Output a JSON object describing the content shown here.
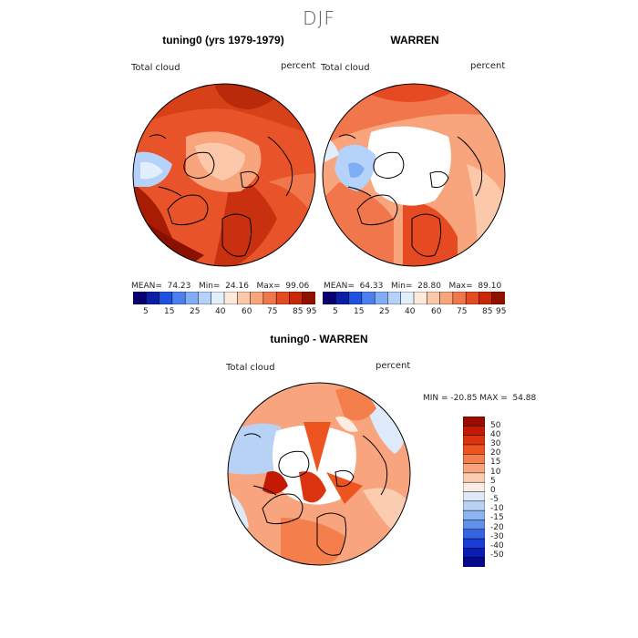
{
  "season": "DJF",
  "panels": [
    {
      "title": "tuning0 (yrs 1979-1979)",
      "field": "Total cloud",
      "units": "percent",
      "stats": "MEAN=  74.23   Min=  24.16   Max=  99.06"
    },
    {
      "title": "WARREN",
      "field": "Total cloud",
      "units": "percent",
      "stats": "MEAN=  64.33   Min=  28.80   Max=  89.10"
    }
  ],
  "shared_colorbar": {
    "ticks": [
      "5",
      "15",
      "25",
      "40",
      "60",
      "75",
      "85",
      "95"
    ],
    "colors": [
      "#08006e",
      "#0c1ea8",
      "#2050e0",
      "#4a80f0",
      "#80aef6",
      "#b4d2fa",
      "#e2eefc",
      "#fde8dc",
      "#fcc8aa",
      "#f8a47c",
      "#f2764c",
      "#e64a22",
      "#c82808",
      "#901000"
    ]
  },
  "difference_panel": {
    "title": "tuning0 - WARREN",
    "field": "Total cloud",
    "units": "percent",
    "stats": "MIN = -20.85 MAX =  54.88",
    "colorbar": {
      "labels": [
        "50",
        "40",
        "30",
        "20",
        "15",
        "10",
        "5",
        "0",
        "-5",
        "-10",
        "-15",
        "-20",
        "-30",
        "-40",
        "-50"
      ],
      "colors": [
        "#9a0c00",
        "#c41a04",
        "#dc3410",
        "#ee5420",
        "#f47e4c",
        "#f8a47e",
        "#fcccb0",
        "#fdece2",
        "#dceafa",
        "#b8d2f6",
        "#8cb4f0",
        "#6090ea",
        "#3664e2",
        "#1a3cd6",
        "#0a1cb4",
        "#060a88"
      ]
    }
  }
}
